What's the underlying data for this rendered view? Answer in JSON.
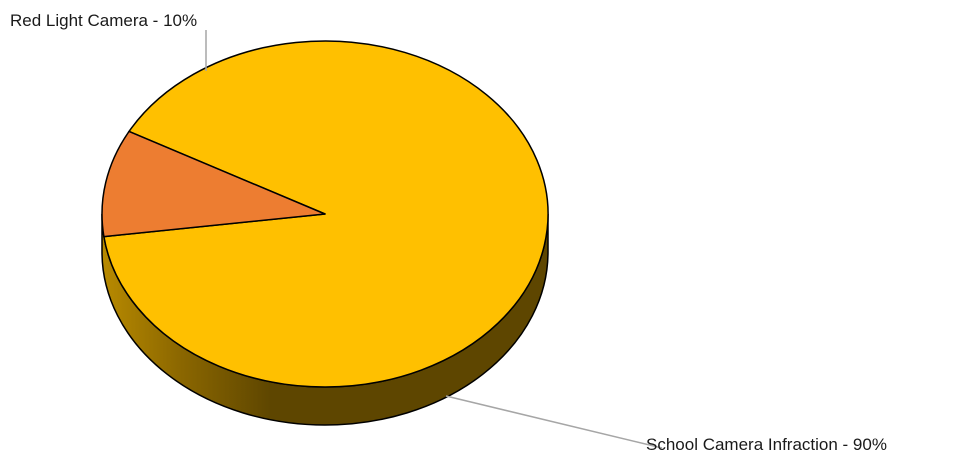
{
  "chart_data": {
    "type": "pie",
    "title": "",
    "categories": [
      "School Camera Infraction",
      "Red Light Camera"
    ],
    "values": [
      90,
      10
    ],
    "unit": "%",
    "slice_colors": [
      "#ffc000",
      "#ed7d31"
    ],
    "side_colors": {
      "dark": "#5e4600",
      "mid": "#8a6600",
      "light": "#b88a00"
    },
    "leader_line_color": "#a6a6a6",
    "outline_color": "#000000",
    "legend": "none",
    "start_angle_deg": 262.5,
    "labels": [
      "School Camera Infraction - 90%",
      "Red Light Camera - 10%"
    ]
  }
}
